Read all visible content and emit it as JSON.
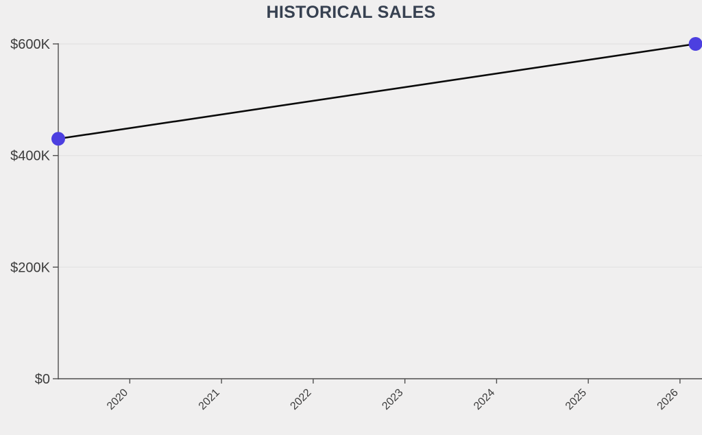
{
  "page": {
    "background_color": "#f0efef"
  },
  "chart_data": {
    "type": "line",
    "title": "HISTORICAL SALES",
    "xlabel": "",
    "ylabel": "",
    "grid": "horizontal-only",
    "legend_position": "none",
    "x_domain": [
      2019.22,
      2026.24
    ],
    "y_domain": [
      0,
      600000
    ],
    "x_ticks": [
      {
        "value": 2020,
        "label": "2020"
      },
      {
        "value": 2021,
        "label": "2021"
      },
      {
        "value": 2022,
        "label": "2022"
      },
      {
        "value": 2023,
        "label": "2023"
      },
      {
        "value": 2024,
        "label": "2024"
      },
      {
        "value": 2025,
        "label": "2025"
      },
      {
        "value": 2026,
        "label": "2026"
      }
    ],
    "y_ticks": [
      {
        "value": 0,
        "label": "$0"
      },
      {
        "value": 200000,
        "label": "$200K"
      },
      {
        "value": 400000,
        "label": "$400K"
      },
      {
        "value": 600000,
        "label": "$600K"
      }
    ],
    "series": [
      {
        "name": "historical-sales",
        "line_color": "#0a0a0a",
        "line_width": 2.6,
        "point_color": "#4c3fe0",
        "point_radius": 10,
        "points": [
          {
            "x": 2019.22,
            "y": 430000
          },
          {
            "x": 2026.17,
            "y": 600000
          }
        ]
      }
    ],
    "colors": {
      "title": "#374151",
      "axis": "#4f4f4f",
      "grid": "#e4e4e4",
      "tick_label": "#3c3c3c",
      "background": "#f0efef"
    }
  }
}
